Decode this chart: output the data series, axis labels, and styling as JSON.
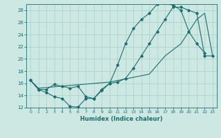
{
  "xlabel": "Humidex (Indice chaleur)",
  "ylabel": "",
  "xlim": [
    -0.5,
    23.5
  ],
  "ylim": [
    12,
    29
  ],
  "yticks": [
    12,
    14,
    16,
    18,
    20,
    22,
    24,
    26,
    28
  ],
  "xticks": [
    0,
    1,
    2,
    3,
    4,
    5,
    6,
    7,
    8,
    9,
    10,
    11,
    12,
    13,
    14,
    15,
    16,
    17,
    18,
    19,
    20,
    21,
    22,
    23
  ],
  "background_color": "#cde8e2",
  "grid_color": "#a8cfc8",
  "line_color": "#1a6e6e",
  "line1_x": [
    0,
    1,
    2,
    3,
    4,
    5,
    6,
    7,
    8,
    9,
    10,
    11,
    12,
    13,
    14,
    15,
    16,
    17,
    18,
    19,
    20,
    21,
    22
  ],
  "line1_y": [
    16.5,
    15.0,
    14.5,
    13.8,
    13.5,
    12.2,
    12.1,
    13.5,
    13.5,
    14.8,
    16.0,
    19.0,
    22.5,
    25.0,
    26.5,
    27.5,
    29.0,
    29.2,
    28.8,
    28.0,
    24.5,
    22.5,
    21.0
  ],
  "line2_x": [
    0,
    1,
    2,
    3,
    4,
    5,
    6,
    7,
    8,
    9,
    10,
    11,
    12,
    13,
    14,
    15,
    16,
    17,
    18,
    19,
    20,
    21,
    22,
    23
  ],
  "line2_y": [
    16.5,
    15.0,
    15.0,
    15.8,
    15.5,
    15.2,
    15.5,
    13.8,
    13.5,
    15.0,
    16.0,
    16.2,
    16.8,
    18.5,
    20.5,
    22.5,
    24.5,
    26.5,
    28.5,
    28.5,
    28.0,
    27.5,
    20.5,
    20.5
  ],
  "line3_x": [
    0,
    1,
    10,
    15,
    17,
    19,
    20,
    21,
    22,
    23
  ],
  "line3_y": [
    16.5,
    15.2,
    16.2,
    17.5,
    20.5,
    22.5,
    24.5,
    26.5,
    27.5,
    20.5
  ]
}
